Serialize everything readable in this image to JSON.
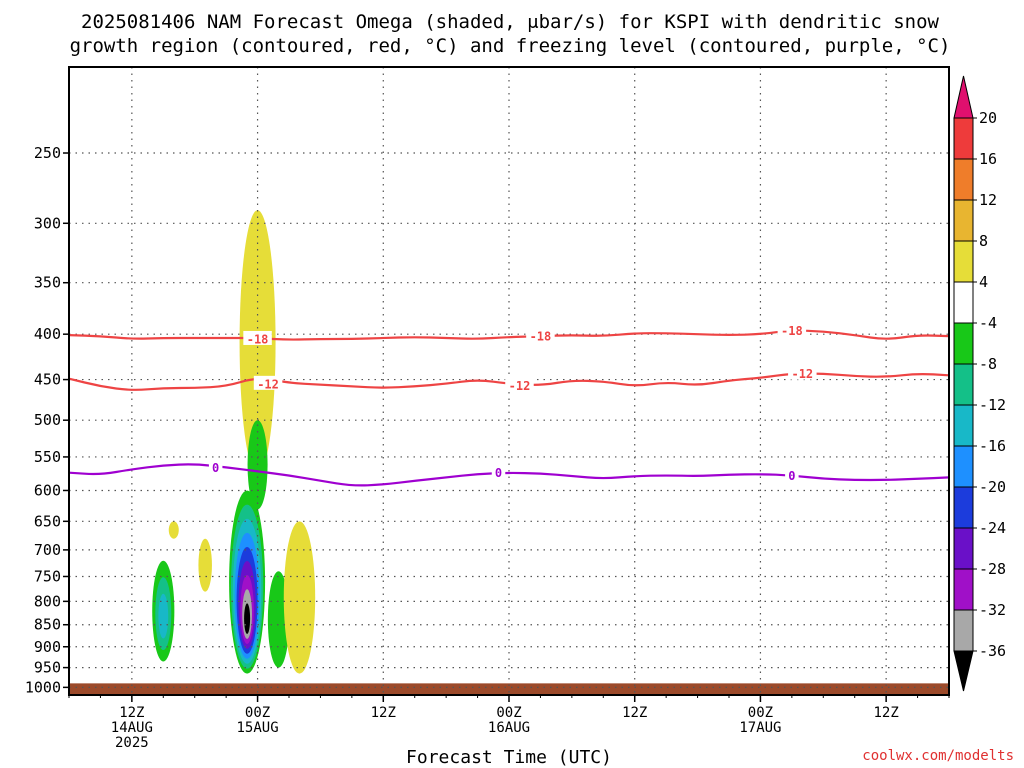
{
  "title": {
    "line1": "2025081406 NAM Forecast Omega (shaded, μbar/s) for KSPI with dendritic snow",
    "line2": "growth region (contoured, red, °C) and freezing level (contoured, purple, °C)"
  },
  "credit": "coolwx.com/modelts",
  "colors": {
    "dgz": "#ee4444",
    "freezing": "#9f00d0",
    "ground": "#9c4a2a",
    "grid": "#555555",
    "credit": "#e03030"
  },
  "chart_data": {
    "type": "heatmap",
    "title": "2025081406 NAM Forecast Omega (shaded, μbar/s) for KSPI with dendritic snow growth region (contoured, red, °C) and freezing level (contoured, purple, °C)",
    "xlabel": "Forecast Time (UTC)",
    "ylabel": "",
    "x_range": [
      "2025-08-14T06Z",
      "2025-08-17T18Z"
    ],
    "y_range_hPa": [
      1020,
      200
    ],
    "y_scale": "log",
    "grid": true,
    "x_ticks": [
      {
        "x": "2025-08-14T12Z",
        "lines": [
          "12Z",
          "14AUG",
          "2025"
        ]
      },
      {
        "x": "2025-08-15T00Z",
        "lines": [
          "00Z",
          "15AUG"
        ]
      },
      {
        "x": "2025-08-15T12Z",
        "lines": [
          "12Z"
        ]
      },
      {
        "x": "2025-08-16T00Z",
        "lines": [
          "00Z",
          "16AUG"
        ]
      },
      {
        "x": "2025-08-16T12Z",
        "lines": [
          "12Z"
        ]
      },
      {
        "x": "2025-08-17T00Z",
        "lines": [
          "00Z",
          "17AUG"
        ]
      },
      {
        "x": "2025-08-17T12Z",
        "lines": [
          "12Z"
        ]
      }
    ],
    "y_ticks": [
      250,
      300,
      350,
      400,
      450,
      500,
      550,
      600,
      650,
      700,
      750,
      800,
      850,
      900,
      950,
      1000
    ],
    "colorbar": {
      "labels": [
        "20",
        "16",
        "12",
        "8",
        "4",
        "-4",
        "-8",
        "-12",
        "-16",
        "-20",
        "-24",
        "-28",
        "-32",
        "-36"
      ],
      "bins": [
        {
          "color": "#ee3b3b",
          "range": [
            16,
            20
          ]
        },
        {
          "color": "#ef7d2a",
          "range": [
            12,
            16
          ]
        },
        {
          "color": "#e8b530",
          "range": [
            8,
            12
          ]
        },
        {
          "color": "#e6dd38",
          "range": [
            4,
            8
          ]
        },
        {
          "color": "#ffffff",
          "range": [
            -4,
            4
          ]
        },
        {
          "color": "#18c818",
          "range": [
            -8,
            -4
          ]
        },
        {
          "color": "#14c088",
          "range": [
            -12,
            -8
          ]
        },
        {
          "color": "#18b8c8",
          "range": [
            -16,
            -12
          ]
        },
        {
          "color": "#1e90ff",
          "range": [
            -20,
            -16
          ]
        },
        {
          "color": "#1c3cdc",
          "range": [
            -24,
            -20
          ]
        },
        {
          "color": "#6a10c8",
          "range": [
            -28,
            -24
          ]
        },
        {
          "color": "#a010c8",
          "range": [
            -32,
            -28
          ]
        },
        {
          "color": "#a8a8a8",
          "range": [
            -36,
            -32
          ]
        }
      ],
      "top_arrow_color": "#e0106e",
      "bottom_arrow_color": "#000000"
    },
    "contour_series": [
      {
        "level": -18,
        "color": "#ee4444",
        "label": "-18",
        "points": [
          [
            "2025-08-14T06Z",
            401
          ],
          [
            "2025-08-14T09Z",
            402
          ],
          [
            "2025-08-14T12Z",
            405
          ],
          [
            "2025-08-14T15Z",
            404
          ],
          [
            "2025-08-14T18Z",
            404
          ],
          [
            "2025-08-14T21Z",
            404
          ],
          [
            "2025-08-15T00Z",
            404
          ],
          [
            "2025-08-15T03Z",
            406
          ],
          [
            "2025-08-15T06Z",
            405
          ],
          [
            "2025-08-15T09Z",
            405
          ],
          [
            "2025-08-15T12Z",
            404
          ],
          [
            "2025-08-15T15Z",
            403
          ],
          [
            "2025-08-15T18Z",
            404
          ],
          [
            "2025-08-15T21Z",
            405
          ],
          [
            "2025-08-16T00Z",
            403
          ],
          [
            "2025-08-16T03Z",
            402
          ],
          [
            "2025-08-16T06Z",
            401
          ],
          [
            "2025-08-16T09Z",
            402
          ],
          [
            "2025-08-16T12Z",
            399
          ],
          [
            "2025-08-16T15Z",
            399
          ],
          [
            "2025-08-16T18Z",
            400
          ],
          [
            "2025-08-16T21Z",
            401
          ],
          [
            "2025-08-17T00Z",
            400
          ],
          [
            "2025-08-17T03Z",
            396
          ],
          [
            "2025-08-17T06Z",
            397
          ],
          [
            "2025-08-17T09Z",
            401
          ],
          [
            "2025-08-17T12Z",
            406
          ],
          [
            "2025-08-17T15Z",
            401
          ],
          [
            "2025-08-17T18Z",
            402
          ]
        ]
      },
      {
        "level": -12,
        "color": "#ee4444",
        "label": "-12",
        "points": [
          [
            "2025-08-14T06Z",
            449
          ],
          [
            "2025-08-14T09Z",
            458
          ],
          [
            "2025-08-14T12Z",
            463
          ],
          [
            "2025-08-14T15Z",
            460
          ],
          [
            "2025-08-14T18Z",
            460
          ],
          [
            "2025-08-14T21Z",
            458
          ],
          [
            "2025-08-15T00Z",
            447
          ],
          [
            "2025-08-15T03Z",
            454
          ],
          [
            "2025-08-15T06Z",
            456
          ],
          [
            "2025-08-15T09Z",
            458
          ],
          [
            "2025-08-15T12Z",
            460
          ],
          [
            "2025-08-15T15Z",
            458
          ],
          [
            "2025-08-15T18Z",
            455
          ],
          [
            "2025-08-15T21Z",
            450
          ],
          [
            "2025-08-16T00Z",
            455
          ],
          [
            "2025-08-16T03Z",
            457
          ],
          [
            "2025-08-16T06Z",
            451
          ],
          [
            "2025-08-16T09Z",
            452
          ],
          [
            "2025-08-16T12Z",
            458
          ],
          [
            "2025-08-16T15Z",
            453
          ],
          [
            "2025-08-16T18Z",
            457
          ],
          [
            "2025-08-16T21Z",
            451
          ],
          [
            "2025-08-17T00Z",
            448
          ],
          [
            "2025-08-17T03Z",
            443
          ],
          [
            "2025-08-17T06Z",
            443
          ],
          [
            "2025-08-17T09Z",
            446
          ],
          [
            "2025-08-17T12Z",
            447
          ],
          [
            "2025-08-17T15Z",
            443
          ],
          [
            "2025-08-17T18Z",
            445
          ]
        ]
      },
      {
        "level": 0,
        "color": "#9f00d0",
        "label": "0",
        "points": [
          [
            "2025-08-14T06Z",
            573
          ],
          [
            "2025-08-14T09Z",
            576
          ],
          [
            "2025-08-14T12Z",
            568
          ],
          [
            "2025-08-14T15Z",
            562
          ],
          [
            "2025-08-14T18Z",
            560
          ],
          [
            "2025-08-14T21Z",
            565
          ],
          [
            "2025-08-15T00Z",
            571
          ],
          [
            "2025-08-15T03Z",
            577
          ],
          [
            "2025-08-15T06Z",
            585
          ],
          [
            "2025-08-15T09Z",
            593
          ],
          [
            "2025-08-15T12Z",
            591
          ],
          [
            "2025-08-15T15Z",
            585
          ],
          [
            "2025-08-15T18Z",
            580
          ],
          [
            "2025-08-15T21Z",
            575
          ],
          [
            "2025-08-16T00Z",
            573
          ],
          [
            "2025-08-16T03Z",
            574
          ],
          [
            "2025-08-16T06Z",
            578
          ],
          [
            "2025-08-16T09Z",
            582
          ],
          [
            "2025-08-16T12Z",
            578
          ],
          [
            "2025-08-16T15Z",
            577
          ],
          [
            "2025-08-16T18Z",
            578
          ],
          [
            "2025-08-16T21Z",
            576
          ],
          [
            "2025-08-17T00Z",
            575
          ],
          [
            "2025-08-17T03Z",
            577
          ],
          [
            "2025-08-17T06Z",
            582
          ],
          [
            "2025-08-17T09Z",
            584
          ],
          [
            "2025-08-17T12Z",
            584
          ],
          [
            "2025-08-17T15Z",
            582
          ],
          [
            "2025-08-17T18Z",
            580
          ]
        ]
      }
    ],
    "contour_labels": [
      {
        "series": -18,
        "x": "2025-08-15T00Z",
        "p": 405,
        "text": "-18"
      },
      {
        "series": -18,
        "x": "2025-08-16T03Z",
        "p": 402,
        "text": "-18"
      },
      {
        "series": -18,
        "x": "2025-08-17T03Z",
        "p": 396,
        "text": "-18"
      },
      {
        "series": -12,
        "x": "2025-08-15T01Z",
        "p": 455,
        "text": "-12"
      },
      {
        "series": -12,
        "x": "2025-08-16T01Z",
        "p": 457,
        "text": "-12"
      },
      {
        "series": -12,
        "x": "2025-08-17T04Z",
        "p": 443,
        "text": "-12"
      },
      {
        "series": 0,
        "x": "2025-08-14T20Z",
        "p": 565,
        "text": "0"
      },
      {
        "series": 0,
        "x": "2025-08-15T23Z",
        "p": 573,
        "text": "0"
      },
      {
        "series": 0,
        "x": "2025-08-17T03Z",
        "p": 577,
        "text": "0"
      }
    ],
    "omega_features": [
      {
        "x": "2025-08-14T15Z",
        "p_top": 720,
        "p_bottom": 935,
        "value_min": -16
      },
      {
        "x": "2025-08-14T16Z",
        "p_top": 650,
        "p_bottom": 680,
        "value_max": 8
      },
      {
        "x": "2025-08-14T19Z",
        "p_top": 680,
        "p_bottom": 780,
        "value_max": 8
      },
      {
        "x": "2025-08-14T23Z",
        "p_top": 600,
        "p_bottom": 965,
        "value_min": -36
      },
      {
        "x": "2025-08-15T00Z",
        "p_top": 290,
        "p_bottom": 575,
        "value_max": 8
      },
      {
        "x": "2025-08-15T00Z",
        "p_top": 500,
        "p_bottom": 630,
        "value_min": -8
      },
      {
        "x": "2025-08-15T02Z",
        "p_top": 740,
        "p_bottom": 950,
        "value_min": -8
      },
      {
        "x": "2025-08-15T04Z",
        "p_top": 650,
        "p_bottom": 965,
        "value_max": 8
      }
    ],
    "ground_p": 1000
  }
}
